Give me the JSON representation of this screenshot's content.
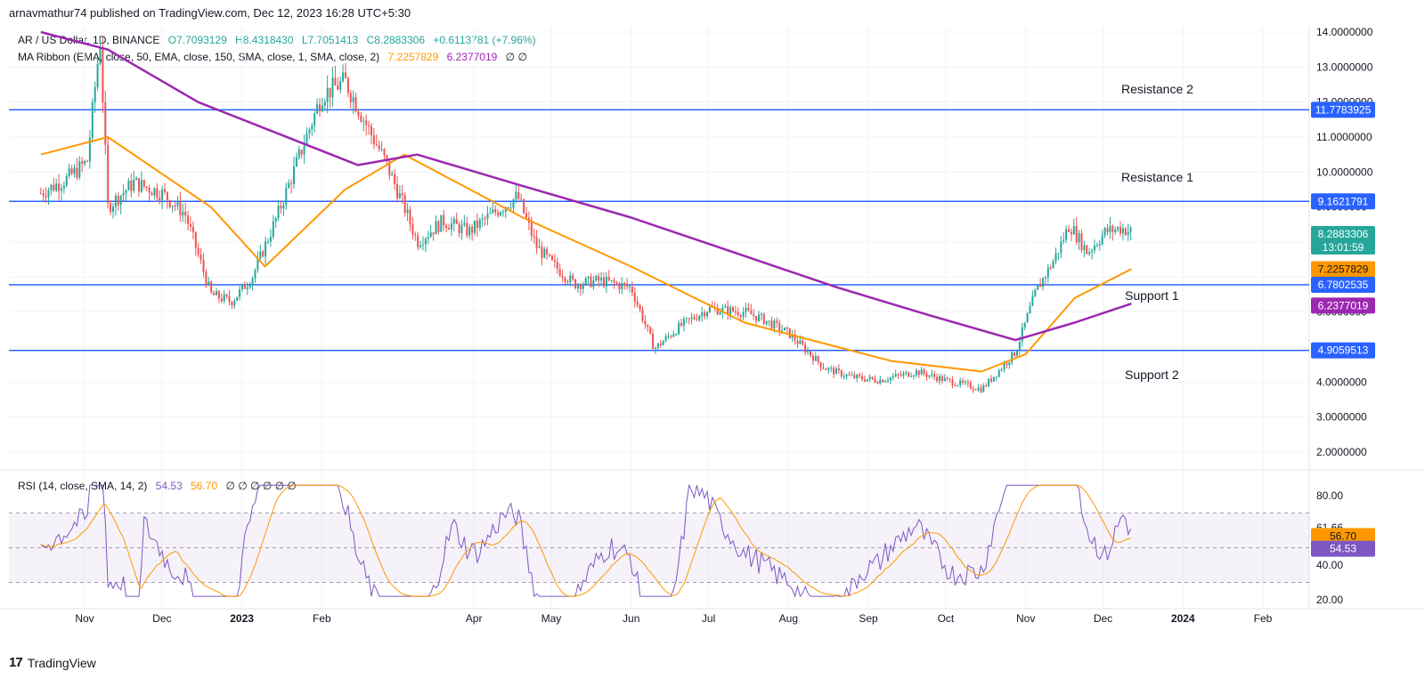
{
  "header": {
    "published_by": "arnavmathur74 published on TradingView.com, Dec 12, 2023 16:28 UTC+5:30"
  },
  "legend": {
    "symbol": "AR / US Dollar, 1D, BINANCE",
    "open": "O7.7093129",
    "high": "H8.4318430",
    "low": "L7.7051413",
    "close": "C8.2883306",
    "change": "+0.6113781 (+7.96%)",
    "ma_ribbon_label": "MA Ribbon (EMA, close, 50, EMA, close, 150, SMA, close, 1, SMA, close, 2)",
    "ma_value_1": "7.2257829",
    "ma_value_2": "6.2377019",
    "ma_empty": "∅ ∅",
    "rsi_label": "RSI (14, close, SMA, 14, 2)",
    "rsi_value": "54.53",
    "rsi_ma_value": "56.70",
    "rsi_empty": "∅ ∅ ∅ ∅ ∅ ∅"
  },
  "colors": {
    "up": "#26a69a",
    "down": "#ef5350",
    "ema50": "#ff9800",
    "ema150": "#9c27b0",
    "level": "#2962ff",
    "rsi": "#7e57c2",
    "rsi_ma": "#ff9800"
  },
  "levels": [
    {
      "name": "Resistance 2",
      "value": 11.7783925,
      "label": "11.7783925"
    },
    {
      "name": "Resistance 1",
      "value": 9.1621791,
      "label": "9.1621791"
    },
    {
      "name": "Support 1",
      "value": 6.7802535,
      "label": "6.7802535"
    },
    {
      "name": "Support 2",
      "value": 4.9059513,
      "label": "4.9059513"
    }
  ],
  "price_tags": {
    "last_price": "8.2883306",
    "countdown": "13:01:59",
    "ema50": "7.2257829",
    "ema150": "6.2377019",
    "rsi_value": "54.53",
    "rsi_ma": "56.70"
  },
  "chart_data": {
    "type": "line",
    "title": "AR / US Dollar, 1D, BINANCE",
    "price_axis": {
      "ticks": [
        "14.0000000",
        "13.0000000",
        "12.0000000",
        "11.0000000",
        "10.0000000",
        "9.0000000",
        "8.0000000",
        "7.0000000",
        "6.0000000",
        "5.0000000",
        "4.0000000",
        "3.0000000",
        "2.0000000"
      ],
      "ylim": [
        1.5,
        14.2
      ]
    },
    "rsi_axis": {
      "ticks": [
        "80.00",
        "61.66",
        "53.19",
        "40.00",
        "20.00"
      ],
      "bands": [
        30,
        70
      ]
    },
    "x_axis": {
      "ticks": [
        "Nov",
        "Dec",
        "2023",
        "Feb",
        "Apr",
        "May",
        "Jun",
        "Jul",
        "Aug",
        "Sep",
        "Oct",
        "Nov",
        "Dec",
        "2024",
        "Feb"
      ]
    },
    "series": [
      {
        "name": "AR / US Dollar",
        "x": [
          "2022-10-15",
          "2022-10-25",
          "2022-11-02",
          "2022-11-07",
          "2022-11-10",
          "2022-11-20",
          "2022-12-01",
          "2022-12-10",
          "2022-12-20",
          "2022-12-28",
          "2023-01-05",
          "2023-01-15",
          "2023-01-25",
          "2023-02-01",
          "2023-02-10",
          "2023-02-20",
          "2023-02-25",
          "2023-03-05",
          "2023-03-10",
          "2023-03-20",
          "2023-03-30",
          "2023-04-10",
          "2023-04-18",
          "2023-04-25",
          "2023-05-01",
          "2023-05-10",
          "2023-05-20",
          "2023-06-01",
          "2023-06-10",
          "2023-06-20",
          "2023-07-01",
          "2023-07-15",
          "2023-07-22",
          "2023-08-01",
          "2023-08-15",
          "2023-08-25",
          "2023-09-05",
          "2023-09-20",
          "2023-10-01",
          "2023-10-15",
          "2023-10-20",
          "2023-10-28",
          "2023-11-05",
          "2023-11-12",
          "2023-11-18",
          "2023-11-25",
          "2023-12-02",
          "2023-12-08",
          "2023-12-12"
        ],
        "values": [
          9.4,
          9.8,
          10.3,
          13.8,
          9.0,
          9.7,
          9.4,
          8.8,
          6.5,
          6.3,
          7.0,
          8.8,
          10.8,
          12.2,
          12.6,
          11.1,
          10.4,
          9.0,
          8.0,
          8.6,
          8.3,
          8.9,
          9.3,
          7.9,
          7.4,
          6.8,
          6.9,
          6.7,
          4.95,
          5.6,
          6.1,
          6.0,
          5.8,
          5.4,
          4.4,
          4.15,
          4.05,
          4.3,
          4.05,
          3.8,
          4.2,
          4.85,
          6.6,
          7.5,
          8.5,
          7.7,
          8.3,
          8.4,
          8.29
        ]
      },
      {
        "name": "EMA 50",
        "x": [
          "2022-10-15",
          "2022-11-10",
          "2022-12-20",
          "2023-01-10",
          "2023-02-10",
          "2023-03-05",
          "2023-04-20",
          "2023-06-01",
          "2023-07-15",
          "2023-08-15",
          "2023-09-10",
          "2023-10-15",
          "2023-11-01",
          "2023-11-20",
          "2023-12-12"
        ],
        "values": [
          10.5,
          11.0,
          9.0,
          7.3,
          9.5,
          10.5,
          8.7,
          7.3,
          5.7,
          5.1,
          4.6,
          4.3,
          4.8,
          6.4,
          7.23
        ]
      },
      {
        "name": "EMA 150",
        "x": [
          "2022-10-15",
          "2022-11-10",
          "2022-12-15",
          "2023-02-15",
          "2023-03-10",
          "2023-04-20",
          "2023-06-01",
          "2023-07-15",
          "2023-08-20",
          "2023-09-25",
          "2023-10-28",
          "2023-11-20",
          "2023-12-12"
        ],
        "values": [
          14.0,
          13.5,
          12.0,
          10.2,
          10.5,
          9.6,
          8.7,
          7.6,
          6.7,
          5.9,
          5.2,
          5.7,
          6.24
        ]
      }
    ]
  }
}
